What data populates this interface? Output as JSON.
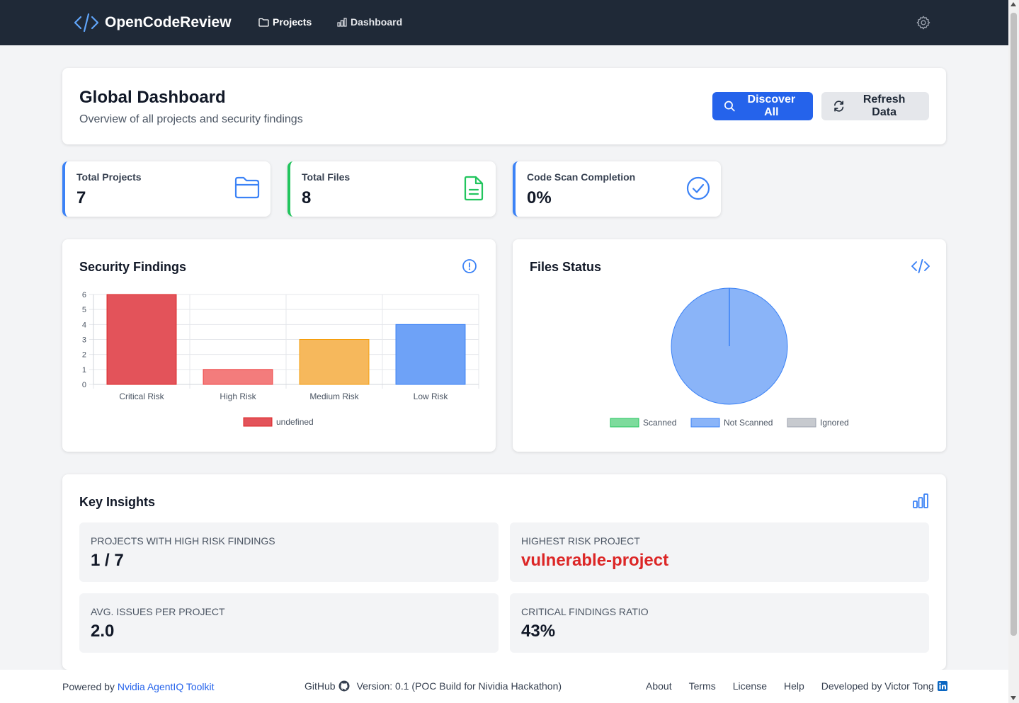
{
  "nav": {
    "brand": "OpenCodeReview",
    "projects_label": "Projects",
    "dashboard_label": "Dashboard"
  },
  "header": {
    "title": "Global Dashboard",
    "subtitle": "Overview of all projects and security findings",
    "discover_label": "Discover All",
    "refresh_label": "Refresh Data"
  },
  "stats": {
    "projects": {
      "label": "Total Projects",
      "value": "7",
      "color": "#3b82f6"
    },
    "files": {
      "label": "Total Files",
      "value": "8",
      "color": "#22c55e"
    },
    "completion": {
      "label": "Code Scan Completion",
      "value": "0%",
      "color": "#3b82f6"
    }
  },
  "security_findings": {
    "title": "Security Findings"
  },
  "files_status": {
    "title": "Files Status"
  },
  "chart_data": [
    {
      "type": "bar",
      "title": "Security Findings",
      "categories": [
        "Critical Risk",
        "High Risk",
        "Medium Risk",
        "Low Risk"
      ],
      "values": [
        6,
        1,
        3,
        4
      ],
      "colors": [
        "#e3535a",
        "#f37c7c",
        "#f6b85c",
        "#6ea2f7"
      ],
      "borders": [
        "#dc2626",
        "#ef4444",
        "#f59e0b",
        "#3b82f6"
      ],
      "ylim": [
        0,
        6
      ],
      "yticks": [
        "0",
        "1",
        "2",
        "3",
        "4",
        "5",
        "6"
      ],
      "legend": "undefined",
      "grid": true
    },
    {
      "type": "pie",
      "title": "Files Status",
      "labels": [
        "Scanned",
        "Not Scanned",
        "Ignored"
      ],
      "values": [
        0,
        8,
        0
      ],
      "colors": [
        "#7ddb9c",
        "#8ab4f8",
        "#c7cacf"
      ],
      "borders": [
        "#22c55e",
        "#3b82f6",
        "#9ca3af"
      ]
    }
  ],
  "insights": {
    "title": "Key Insights",
    "items": [
      {
        "label": "Projects with High Risk Findings",
        "value": "1 / 7"
      },
      {
        "label": "Highest Risk Project",
        "value": "vulnerable-project"
      },
      {
        "label": "Avg. Issues per Project",
        "value": "2.0"
      },
      {
        "label": "Critical Findings Ratio",
        "value": "43%"
      }
    ]
  },
  "footer": {
    "powered_prefix": "Powered by",
    "powered_link": "Nvidia AgentIQ Toolkit",
    "github": "GitHub",
    "version": "Version: 0.1 (POC Build for Nividia Hackathon)",
    "about": "About",
    "terms": "Terms",
    "license": "License",
    "help": "Help",
    "developed": "Developed by Victor Tong"
  }
}
